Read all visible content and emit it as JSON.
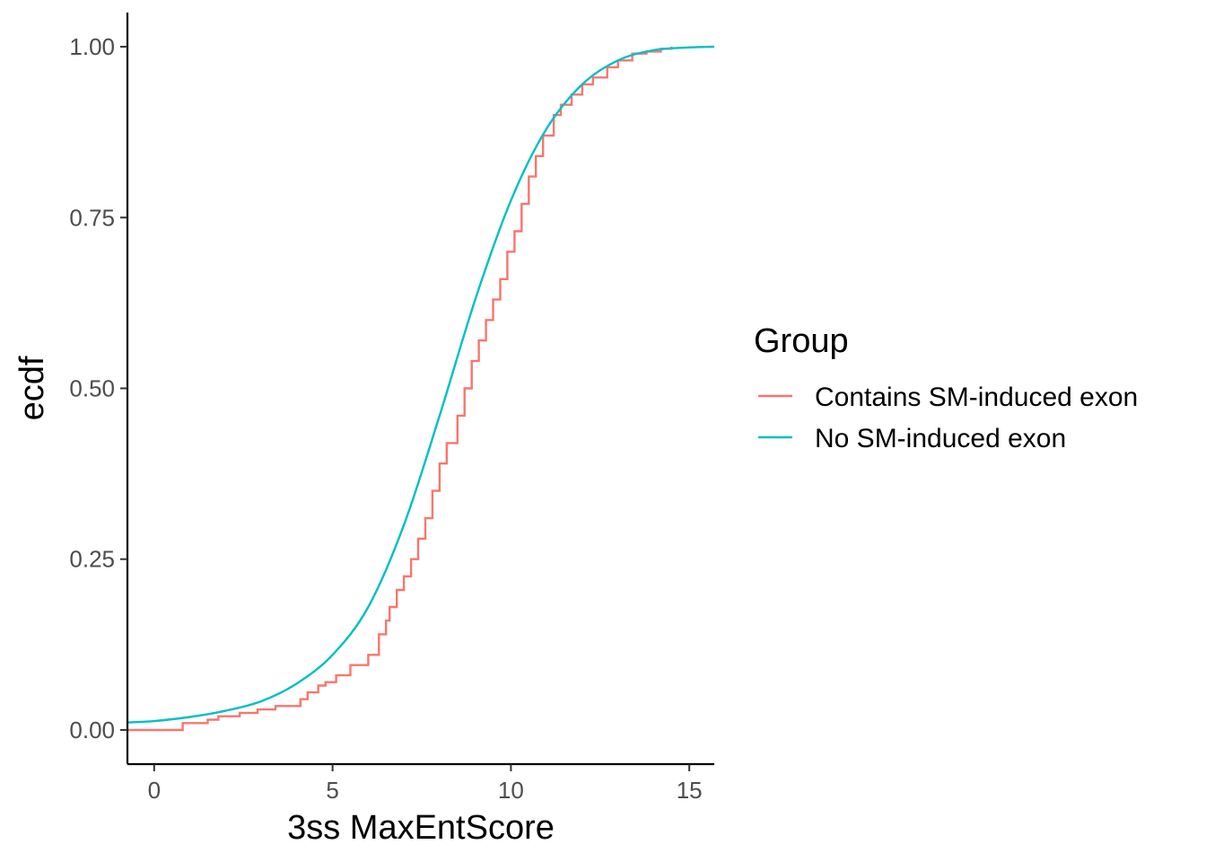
{
  "chart_data": {
    "type": "line",
    "title": "",
    "xlabel": "3ss MaxEntScore",
    "ylabel": "ecdf",
    "xlim": [
      -0.75,
      15.7
    ],
    "ylim": [
      -0.05,
      1.05
    ],
    "x_ticks": [
      0,
      5,
      10,
      15
    ],
    "x_tick_labels": [
      "0",
      "5",
      "10",
      "15"
    ],
    "y_ticks": [
      0,
      0.25,
      0.5,
      0.75,
      1
    ],
    "y_tick_labels": [
      "0.00",
      "0.25",
      "0.50",
      "0.75",
      "1.00"
    ],
    "grid": false,
    "legend": {
      "title": "Group",
      "placement": "right"
    },
    "series": [
      {
        "name": "Contains SM-induced exon",
        "color": "#F8766D",
        "step": true,
        "x": [
          -0.75,
          0.8,
          1.5,
          1.8,
          2.4,
          2.9,
          3.4,
          4.1,
          4.3,
          4.6,
          4.8,
          5.1,
          5.5,
          6.0,
          6.3,
          6.5,
          6.6,
          6.8,
          7.0,
          7.2,
          7.4,
          7.6,
          7.8,
          8.0,
          8.2,
          8.5,
          8.7,
          8.9,
          9.1,
          9.3,
          9.5,
          9.7,
          9.9,
          10.1,
          10.3,
          10.5,
          10.7,
          10.9,
          11.2,
          11.4,
          11.7,
          12.0,
          12.3,
          12.7,
          13.0,
          13.4,
          13.8,
          14.2,
          14.5
        ],
        "y": [
          0.0,
          0.01,
          0.015,
          0.02,
          0.025,
          0.03,
          0.035,
          0.045,
          0.055,
          0.065,
          0.07,
          0.08,
          0.095,
          0.11,
          0.14,
          0.16,
          0.18,
          0.205,
          0.225,
          0.25,
          0.28,
          0.31,
          0.35,
          0.39,
          0.42,
          0.46,
          0.5,
          0.54,
          0.57,
          0.6,
          0.63,
          0.66,
          0.7,
          0.73,
          0.77,
          0.81,
          0.84,
          0.87,
          0.9,
          0.915,
          0.93,
          0.945,
          0.955,
          0.97,
          0.98,
          0.99,
          0.993,
          0.997,
          1.0
        ]
      },
      {
        "name": "No SM-induced exon",
        "color": "#00BFC4",
        "step": false,
        "x": [
          -0.75,
          0,
          1,
          2,
          3,
          4,
          5,
          6,
          7,
          8,
          9,
          10,
          11,
          12,
          13,
          14,
          15,
          15.7
        ],
        "y": [
          0.011,
          0.013,
          0.019,
          0.028,
          0.042,
          0.068,
          0.11,
          0.18,
          0.3,
          0.46,
          0.63,
          0.775,
          0.88,
          0.945,
          0.98,
          0.995,
          0.999,
          1.0
        ]
      }
    ]
  }
}
